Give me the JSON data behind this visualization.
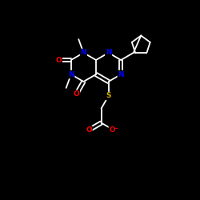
{
  "background_color": "#000000",
  "bond_color": "#ffffff",
  "atom_colors": {
    "N": "#0000ff",
    "O": "#ff0000",
    "S": "#ccaa00",
    "C": "#ffffff"
  },
  "figsize": [
    2.5,
    2.5
  ],
  "dpi": 100
}
